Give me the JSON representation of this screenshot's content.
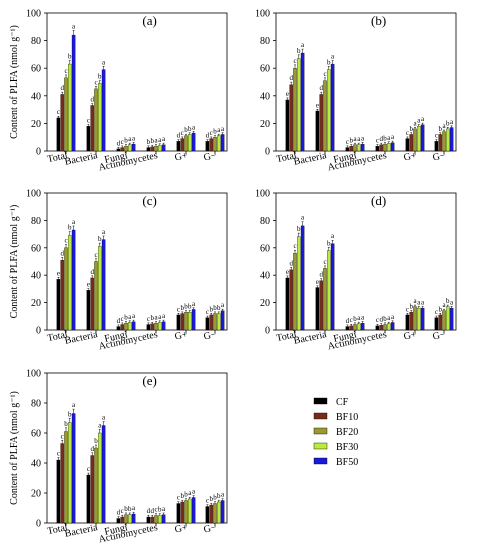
{
  "chart_data": [
    {
      "type": "bar",
      "panel_label": "(a)",
      "ylabel": "Content of PLFA (nmol g⁻¹)",
      "ylim": [
        0,
        100
      ],
      "yticks": [
        0,
        20,
        40,
        60,
        80,
        100
      ],
      "categories": [
        "Total",
        "Bacteria",
        "Fungi",
        "Actinomycetes",
        "G+",
        "G−"
      ],
      "series": [
        {
          "name": "CF",
          "values": [
            24,
            18,
            1.5,
            2.5,
            7,
            7
          ]
        },
        {
          "name": "BF10",
          "values": [
            41,
            33,
            2.5,
            3.0,
            9,
            9
          ]
        },
        {
          "name": "BF20",
          "values": [
            53,
            45,
            3.5,
            3.5,
            11,
            10
          ]
        },
        {
          "name": "BF30",
          "values": [
            63,
            49,
            4.5,
            4.0,
            12,
            11
          ]
        },
        {
          "name": "BF50",
          "values": [
            84,
            59,
            5.0,
            4.5,
            13,
            12
          ]
        }
      ],
      "letters": [
        [
          "c",
          "d",
          "c",
          "b",
          "a"
        ],
        [
          "c",
          "d",
          "c",
          "b",
          "a"
        ],
        [
          "d",
          "c",
          "b",
          "a",
          "a"
        ],
        [
          "b",
          "b",
          "a",
          "a",
          "a"
        ],
        [
          "d",
          "c",
          "b",
          "b",
          "a"
        ],
        [
          "d",
          "c",
          "b",
          "a",
          "a"
        ]
      ]
    },
    {
      "type": "bar",
      "panel_label": "(b)",
      "ylabel": "",
      "ylim": [
        0,
        100
      ],
      "yticks": [
        0,
        20,
        40,
        60,
        80,
        100
      ],
      "categories": [
        "Total",
        "Bacteria",
        "Fungi",
        "Actinomycetes",
        "G+",
        "G−"
      ],
      "series": [
        {
          "name": "CF",
          "values": [
            37,
            29,
            2.5,
            3.5,
            9,
            7
          ]
        },
        {
          "name": "BF10",
          "values": [
            48,
            41,
            3.5,
            4.5,
            12,
            12
          ]
        },
        {
          "name": "BF20",
          "values": [
            60,
            51,
            4.5,
            5.0,
            16,
            14
          ]
        },
        {
          "name": "BF30",
          "values": [
            67,
            59,
            4.5,
            5.5,
            18,
            16
          ]
        },
        {
          "name": "BF50",
          "values": [
            71,
            63,
            5.0,
            6.0,
            19,
            17
          ]
        }
      ],
      "letters": [
        [
          "e",
          "d",
          "c",
          "b",
          "a"
        ],
        [
          "e",
          "d",
          "c",
          "b",
          "a"
        ],
        [
          "c",
          "b",
          "a",
          "a",
          "a"
        ],
        [
          "c",
          "d",
          "b",
          "a",
          "a"
        ],
        [
          "c",
          "b",
          "a",
          "a",
          "a"
        ],
        [
          "c",
          "b",
          "a",
          "b",
          "a"
        ]
      ]
    },
    {
      "type": "bar",
      "panel_label": "(c)",
      "ylabel": "Content of PLFA (nmol g⁻¹)",
      "ylim": [
        0,
        100
      ],
      "yticks": [
        0,
        20,
        40,
        60,
        80,
        100
      ],
      "categories": [
        "Total",
        "Bacteria",
        "Fungi",
        "Actinomycetes",
        "G+",
        "G−"
      ],
      "series": [
        {
          "name": "CF",
          "values": [
            37,
            29,
            2.5,
            4.0,
            11,
            9
          ]
        },
        {
          "name": "BF10",
          "values": [
            51,
            38,
            4.0,
            4.5,
            12,
            11
          ]
        },
        {
          "name": "BF20",
          "values": [
            60,
            50,
            5.0,
            5.0,
            13,
            12
          ]
        },
        {
          "name": "BF30",
          "values": [
            69,
            61,
            5.5,
            5.5,
            13,
            12
          ]
        },
        {
          "name": "BF50",
          "values": [
            73,
            66,
            6.0,
            6.0,
            15,
            14
          ]
        }
      ],
      "letters": [
        [
          "e",
          "d",
          "c",
          "b",
          "a"
        ],
        [
          "e",
          "d",
          "c",
          "b",
          "a"
        ],
        [
          "d",
          "c",
          "b",
          "a",
          "a"
        ],
        [
          "c",
          "b",
          "a",
          "a",
          "a"
        ],
        [
          "c",
          "b",
          "b",
          "b",
          "a"
        ],
        [
          "c",
          "b",
          "b",
          "b",
          "a"
        ]
      ]
    },
    {
      "type": "bar",
      "panel_label": "(d)",
      "ylabel": "",
      "ylim": [
        0,
        100
      ],
      "yticks": [
        0,
        20,
        40,
        60,
        80,
        100
      ],
      "categories": [
        "Total",
        "Bacteria",
        "Fungi",
        "Actinomycetes",
        "G+",
        "G−"
      ],
      "series": [
        {
          "name": "CF",
          "values": [
            38,
            31,
            2.5,
            3.0,
            11,
            9
          ]
        },
        {
          "name": "BF10",
          "values": [
            44,
            36,
            3.0,
            3.5,
            13,
            11
          ]
        },
        {
          "name": "BF20",
          "values": [
            56,
            45,
            4.0,
            4.0,
            17,
            14
          ]
        },
        {
          "name": "BF30",
          "values": [
            68,
            58,
            4.5,
            4.5,
            16,
            17
          ]
        },
        {
          "name": "BF50",
          "values": [
            76,
            63,
            5.0,
            5.5,
            16,
            16
          ]
        }
      ],
      "letters": [
        [
          "e",
          "d",
          "c",
          "b",
          "a"
        ],
        [
          "e",
          "d",
          "c",
          "b",
          "a"
        ],
        [
          "d",
          "c",
          "b",
          "a",
          "a"
        ],
        [
          "c",
          "d",
          "b",
          "a",
          "a"
        ],
        [
          "c",
          "b",
          "a",
          "a",
          "a"
        ],
        [
          "c",
          "b",
          "a",
          "b",
          "a"
        ]
      ]
    },
    {
      "type": "bar",
      "panel_label": "(e)",
      "ylabel": "Content of PLFA (nmol g⁻¹)",
      "ylim": [
        0,
        100
      ],
      "yticks": [
        0,
        20,
        40,
        60,
        80,
        100
      ],
      "categories": [
        "Total",
        "Bacteria",
        "Fungi",
        "Actinomycetes",
        "G+",
        "G−"
      ],
      "series": [
        {
          "name": "CF",
          "values": [
            42,
            32,
            3.0,
            4.0,
            13,
            11
          ]
        },
        {
          "name": "BF10",
          "values": [
            53,
            45,
            4.0,
            4.0,
            14,
            12
          ]
        },
        {
          "name": "BF20",
          "values": [
            61,
            50,
            5.5,
            5.0,
            15,
            13
          ]
        },
        {
          "name": "BF30",
          "values": [
            67,
            60,
            5.5,
            5.0,
            16,
            14
          ]
        },
        {
          "name": "BF50",
          "values": [
            73,
            65,
            6.0,
            5.5,
            17,
            15
          ]
        }
      ],
      "letters": [
        [
          "c",
          "c",
          "b",
          "b",
          "a"
        ],
        [
          "c",
          "d",
          "b",
          "a",
          "a"
        ],
        [
          "d",
          "c",
          "b",
          "b",
          "a"
        ],
        [
          "d",
          "d",
          "c",
          "b",
          "a"
        ],
        [
          "c",
          "b",
          "b",
          "a",
          "a"
        ],
        [
          "c",
          "b",
          "b",
          "b",
          "a"
        ]
      ]
    }
  ],
  "legend": {
    "items": [
      {
        "name": "CF",
        "color": "#000000"
      },
      {
        "name": "BF10",
        "color": "#7a2a1a"
      },
      {
        "name": "BF20",
        "color": "#9a9a30"
      },
      {
        "name": "BF30",
        "color": "#b9ec3c"
      },
      {
        "name": "BF50",
        "color": "#1a1adc"
      }
    ]
  },
  "colors": {
    "CF": "#000000",
    "BF10": "#7a2a1a",
    "BF20": "#9a9a30",
    "BF30": "#b9ec3c",
    "BF50": "#1a1adc"
  }
}
